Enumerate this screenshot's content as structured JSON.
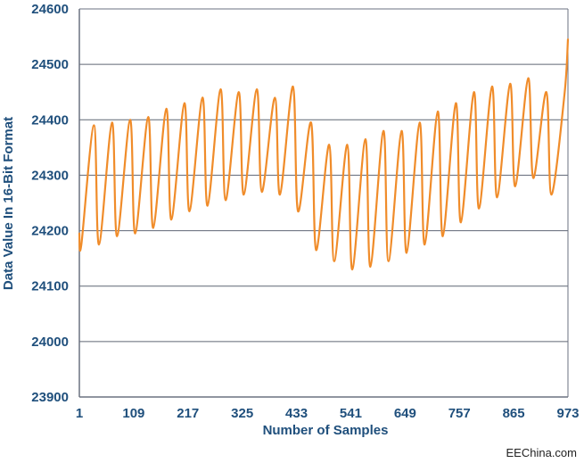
{
  "chart_data": {
    "type": "line",
    "xlabel": "Number of Samples",
    "ylabel": "Data Value In 16-Bit Format",
    "xlim": [
      1,
      973
    ],
    "ylim": [
      23900,
      24600
    ],
    "x_ticks": [
      1,
      109,
      217,
      325,
      433,
      541,
      649,
      757,
      865,
      973
    ],
    "y_ticks": [
      23900,
      24000,
      24100,
      24200,
      24300,
      24400,
      24500,
      24600
    ],
    "grid": "horizontal",
    "series": [
      {
        "color": "#f08c2a",
        "points": [
          [
            1,
            24195
          ],
          [
            5,
            24175
          ],
          [
            30,
            24390
          ],
          [
            40,
            24175
          ],
          [
            66,
            24395
          ],
          [
            76,
            24190
          ],
          [
            102,
            24400
          ],
          [
            112,
            24195
          ],
          [
            138,
            24405
          ],
          [
            148,
            24205
          ],
          [
            174,
            24420
          ],
          [
            184,
            24220
          ],
          [
            210,
            24430
          ],
          [
            220,
            24235
          ],
          [
            246,
            24440
          ],
          [
            256,
            24245
          ],
          [
            282,
            24455
          ],
          [
            292,
            24255
          ],
          [
            318,
            24450
          ],
          [
            328,
            24265
          ],
          [
            354,
            24455
          ],
          [
            364,
            24270
          ],
          [
            390,
            24440
          ],
          [
            400,
            24265
          ],
          [
            426,
            24460
          ],
          [
            436,
            24235
          ],
          [
            462,
            24395
          ],
          [
            472,
            24165
          ],
          [
            498,
            24355
          ],
          [
            508,
            24145
          ],
          [
            534,
            24355
          ],
          [
            544,
            24130
          ],
          [
            570,
            24365
          ],
          [
            580,
            24135
          ],
          [
            606,
            24380
          ],
          [
            616,
            24145
          ],
          [
            642,
            24380
          ],
          [
            652,
            24160
          ],
          [
            678,
            24395
          ],
          [
            688,
            24175
          ],
          [
            714,
            24415
          ],
          [
            724,
            24190
          ],
          [
            750,
            24430
          ],
          [
            760,
            24215
          ],
          [
            786,
            24450
          ],
          [
            796,
            24240
          ],
          [
            822,
            24460
          ],
          [
            832,
            24260
          ],
          [
            858,
            24465
          ],
          [
            868,
            24280
          ],
          [
            894,
            24475
          ],
          [
            904,
            24295
          ],
          [
            930,
            24450
          ],
          [
            940,
            24265
          ],
          [
            966,
            24445
          ],
          [
            973,
            24545
          ]
        ]
      }
    ]
  },
  "watermark": "EEChina.com",
  "colors": {
    "grid": "#5f6674",
    "axis": "#6b7280",
    "text": "#1f4f7c",
    "line": "#f08c2a"
  }
}
